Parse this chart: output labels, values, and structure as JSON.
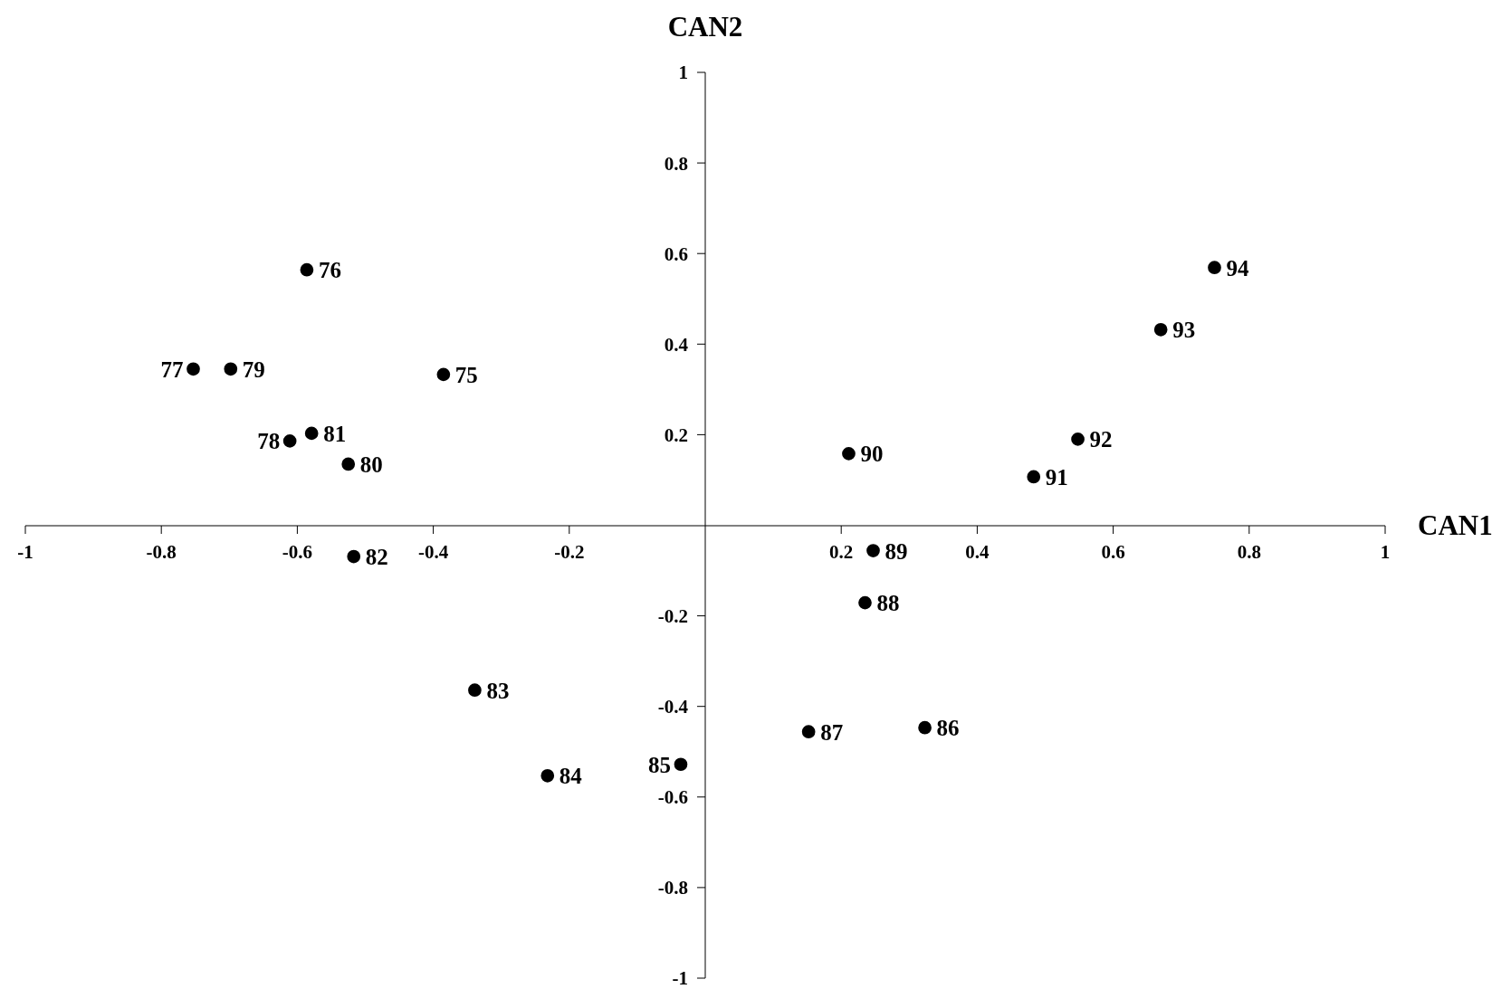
{
  "chart_data": {
    "type": "scatter",
    "xlabel": "CAN1",
    "ylabel": "CAN2",
    "x": [
      -0.385,
      -0.586,
      -0.753,
      -0.611,
      -0.698,
      -0.525,
      -0.579,
      -0.517,
      -0.339,
      -0.232,
      -0.036,
      0.323,
      0.152,
      0.235,
      0.247,
      0.211,
      0.483,
      0.548,
      0.67,
      0.749
    ],
    "series": [
      {
        "color": "#000000",
        "values": [
          0.333,
          0.564,
          0.345,
          0.186,
          0.345,
          0.135,
          0.203,
          -0.069,
          -0.364,
          -0.553,
          -0.528,
          -0.447,
          -0.456,
          -0.171,
          -0.056,
          0.158,
          0.107,
          0.19,
          0.432,
          0.569
        ]
      }
    ],
    "xlim": [
      -1,
      1
    ],
    "ylim": [
      -1,
      1
    ],
    "xticks": [
      -1,
      -0.8,
      -0.6,
      -0.4,
      -0.2,
      0.2,
      0.4,
      0.6,
      0.8,
      1
    ],
    "yticks": [
      -1,
      -0.8,
      -0.6,
      -0.4,
      -0.2,
      0.2,
      0.4,
      0.6,
      0.8,
      1
    ],
    "marker": "circle",
    "grid": false,
    "legend": false,
    "annotations": [
      {
        "text": "75",
        "x": -0.385,
        "y": 0.333
      },
      {
        "text": "76",
        "x": -0.586,
        "y": 0.564
      },
      {
        "text": "77",
        "x": -0.753,
        "y": 0.345
      },
      {
        "text": "78",
        "x": -0.611,
        "y": 0.186
      },
      {
        "text": "79",
        "x": -0.698,
        "y": 0.345
      },
      {
        "text": "80",
        "x": -0.525,
        "y": 0.135
      },
      {
        "text": "81",
        "x": -0.579,
        "y": 0.203
      },
      {
        "text": "82",
        "x": -0.517,
        "y": -0.069
      },
      {
        "text": "83",
        "x": -0.339,
        "y": -0.364
      },
      {
        "text": "84",
        "x": -0.232,
        "y": -0.553
      },
      {
        "text": "85",
        "x": -0.036,
        "y": -0.528
      },
      {
        "text": "86",
        "x": 0.323,
        "y": -0.447
      },
      {
        "text": "87",
        "x": 0.152,
        "y": -0.456
      },
      {
        "text": "88",
        "x": 0.235,
        "y": -0.171
      },
      {
        "text": "89",
        "x": 0.247,
        "y": -0.056
      },
      {
        "text": "90",
        "x": 0.211,
        "y": 0.158
      },
      {
        "text": "91",
        "x": 0.483,
        "y": 0.107
      },
      {
        "text": "92",
        "x": 0.548,
        "y": 0.19
      },
      {
        "text": "93",
        "x": 0.67,
        "y": 0.432
      },
      {
        "text": "94",
        "x": 0.749,
        "y": 0.569
      }
    ]
  }
}
